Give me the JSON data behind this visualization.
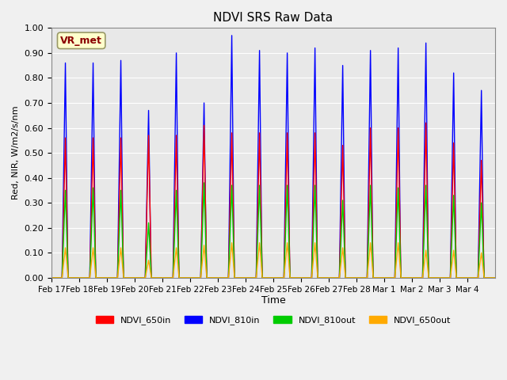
{
  "title": "NDVI SRS Raw Data",
  "ylabel": "Red, NIR, W/m2/s/nm",
  "xlabel": "Time",
  "ylim": [
    0.0,
    1.0
  ],
  "annotation_text": "VR_met",
  "background_color": "#e8e8e8",
  "fig_facecolor": "#f0f0f0",
  "series": {
    "NDVI_650in": {
      "color": "#ff0000",
      "label": "NDVI_650in"
    },
    "NDVI_810in": {
      "color": "#0000ff",
      "label": "NDVI_810in"
    },
    "NDVI_810out": {
      "color": "#00cc00",
      "label": "NDVI_810out"
    },
    "NDVI_650out": {
      "color": "#ffaa00",
      "label": "NDVI_650out"
    }
  },
  "xtick_labels": [
    "Feb 17",
    "Feb 18",
    "Feb 19",
    "Feb 20",
    "Feb 21",
    "Feb 22",
    "Feb 23",
    "Feb 24",
    "Feb 25",
    "Feb 26",
    "Feb 27",
    "Feb 28",
    "Mar 1",
    "Mar 2",
    "Mar 3",
    "Mar 4"
  ],
  "ytick_values": [
    0.0,
    0.1,
    0.2,
    0.3,
    0.4,
    0.5,
    0.6,
    0.7,
    0.8,
    0.9,
    1.0
  ],
  "peaks_650in": [
    0.56,
    0.56,
    0.56,
    0.57,
    0.57,
    0.61,
    0.58,
    0.58,
    0.58,
    0.58,
    0.53,
    0.6,
    0.6,
    0.62,
    0.54,
    0.47
  ],
  "peaks_810in": [
    0.86,
    0.86,
    0.87,
    0.67,
    0.9,
    0.7,
    0.97,
    0.91,
    0.9,
    0.92,
    0.85,
    0.91,
    0.92,
    0.94,
    0.82,
    0.75
  ],
  "peaks_810out": [
    0.35,
    0.36,
    0.35,
    0.22,
    0.35,
    0.38,
    0.37,
    0.37,
    0.37,
    0.37,
    0.31,
    0.37,
    0.36,
    0.37,
    0.33,
    0.3
  ],
  "peaks_650out": [
    0.12,
    0.12,
    0.12,
    0.07,
    0.12,
    0.13,
    0.14,
    0.14,
    0.14,
    0.14,
    0.12,
    0.14,
    0.14,
    0.11,
    0.11,
    0.1
  ]
}
